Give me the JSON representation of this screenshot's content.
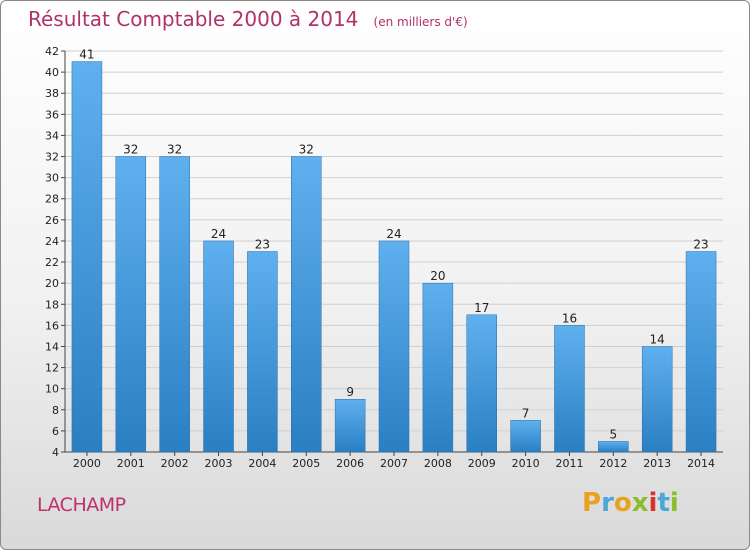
{
  "header": {
    "title": "Résultat Comptable 2000 à 2014",
    "subtitle": "(en milliers d'€)"
  },
  "footer": {
    "commune": "LACHAMP",
    "brand": "Proxiti"
  },
  "colors": {
    "title": "#b0326a",
    "bar_light": "#5fb0ee",
    "bar_dark": "#2a7fc3",
    "grid": "#d0d0d0"
  },
  "chart_data": {
    "type": "bar",
    "title": "Résultat Comptable 2000 à 2014",
    "subtitle": "(en milliers d'€)",
    "xlabel": "",
    "ylabel": "",
    "categories": [
      "2000",
      "2001",
      "2002",
      "2003",
      "2004",
      "2005",
      "2006",
      "2007",
      "2008",
      "2009",
      "2010",
      "2011",
      "2012",
      "2013",
      "2014"
    ],
    "values": [
      41,
      32,
      32,
      24,
      23,
      32,
      9,
      24,
      20,
      17,
      7,
      16,
      5,
      14,
      23
    ],
    "ylim": [
      4,
      42
    ],
    "yticks": [
      4,
      6,
      8,
      10,
      12,
      14,
      16,
      18,
      20,
      22,
      24,
      26,
      28,
      30,
      32,
      34,
      36,
      38,
      40,
      42
    ],
    "grid": true,
    "legend": "none"
  }
}
